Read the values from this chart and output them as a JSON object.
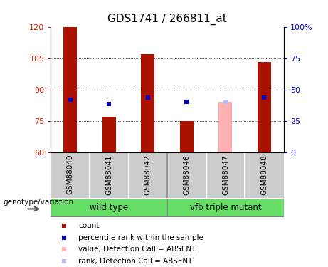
{
  "title": "GDS1741 / 266811_at",
  "samples": [
    "GSM88040",
    "GSM88041",
    "GSM88042",
    "GSM88046",
    "GSM88047",
    "GSM88048"
  ],
  "count_values": [
    120,
    77,
    107,
    75,
    84,
    103
  ],
  "percentile_values": [
    85,
    83,
    86,
    84,
    84,
    86
  ],
  "absent_flags": [
    false,
    false,
    false,
    false,
    true,
    false
  ],
  "ylim_left": [
    60,
    120
  ],
  "ylim_right": [
    0,
    100
  ],
  "yticks_left": [
    60,
    75,
    90,
    105,
    120
  ],
  "yticks_right": [
    0,
    25,
    50,
    75,
    100
  ],
  "ytick_labels_left": [
    "60",
    "75",
    "90",
    "105",
    "120"
  ],
  "ytick_labels_right": [
    "0",
    "25",
    "50",
    "75",
    "100%"
  ],
  "groups": [
    {
      "label": "wild type",
      "indices": [
        0,
        1,
        2
      ]
    },
    {
      "label": "vfb triple mutant",
      "indices": [
        3,
        4,
        5
      ]
    }
  ],
  "bar_color_present": "#aa1100",
  "bar_color_absent": "#ffb0b0",
  "rank_color_present": "#0000cc",
  "rank_color_absent": "#b8b8ff",
  "bar_width": 0.35,
  "group_label_text": "genotype/variation",
  "legend_items": [
    {
      "color": "#aa1100",
      "label": "count",
      "marker": "s"
    },
    {
      "color": "#0000cc",
      "label": "percentile rank within the sample",
      "marker": "s"
    },
    {
      "color": "#ffb0b0",
      "label": "value, Detection Call = ABSENT",
      "marker": "s"
    },
    {
      "color": "#b8b8ff",
      "label": "rank, Detection Call = ABSENT",
      "marker": "s"
    }
  ],
  "title_fontsize": 11,
  "tick_fontsize": 8,
  "label_fontsize": 8,
  "group_area_color": "#66dd66",
  "group_header_color": "#cccccc",
  "plot_bg_color": "#ffffff",
  "outer_bg_color": "#ffffff"
}
